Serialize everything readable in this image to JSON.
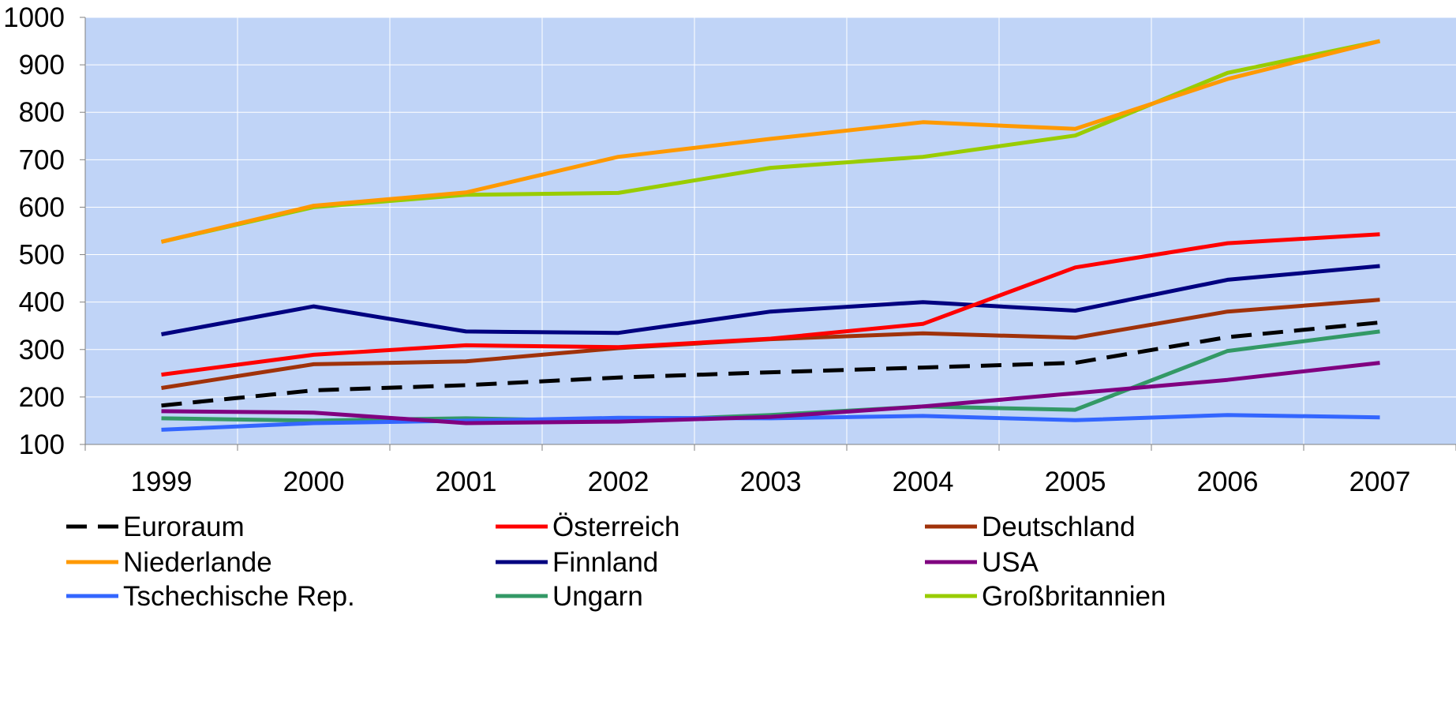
{
  "chart_data": {
    "type": "line",
    "title": "",
    "xlabel": "",
    "ylabel": "",
    "x": [
      "1999",
      "2000",
      "2001",
      "2002",
      "2003",
      "2004",
      "2005",
      "2006",
      "2007"
    ],
    "ylim": [
      100,
      1000
    ],
    "yticks": [
      "100",
      "200",
      "300",
      "400",
      "500",
      "600",
      "700",
      "800",
      "900",
      "1000"
    ],
    "grid": true,
    "legend_position": "bottom",
    "plot_background": "#C0D4F7",
    "series": [
      {
        "name": "Euroraum",
        "color": "#000000",
        "dashed": true,
        "values": [
          182,
          214,
          225,
          241,
          252,
          262,
          272,
          326,
          357
        ]
      },
      {
        "name": "Österreich",
        "color": "#FF0000",
        "dashed": false,
        "values": [
          247,
          289,
          309,
          305,
          323,
          354,
          473,
          524,
          543
        ]
      },
      {
        "name": "Deutschland",
        "color": "#A0320A",
        "dashed": false,
        "values": [
          219,
          269,
          275,
          303,
          322,
          334,
          325,
          380,
          405
        ]
      },
      {
        "name": "Niederlande",
        "color": "#FF9900",
        "dashed": false,
        "values": [
          527,
          603,
          631,
          706,
          744,
          779,
          765,
          870,
          950
        ]
      },
      {
        "name": "Finnland",
        "color": "#000080",
        "dashed": false,
        "values": [
          332,
          391,
          338,
          335,
          380,
          400,
          382,
          447,
          476
        ]
      },
      {
        "name": "USA",
        "color": "#800080",
        "dashed": false,
        "values": [
          170,
          167,
          145,
          148,
          158,
          180,
          208,
          236,
          272
        ]
      },
      {
        "name": "Tschechische Rep.",
        "color": "#3366FF",
        "dashed": false,
        "values": [
          131,
          145,
          150,
          156,
          155,
          160,
          151,
          162,
          157
        ]
      },
      {
        "name": "Ungarn",
        "color": "#339966",
        "dashed": false,
        "values": [
          155,
          150,
          155,
          149,
          162,
          180,
          173,
          297,
          338
        ]
      },
      {
        "name": "Großbritannien",
        "color": "#99CC00",
        "dashed": false,
        "values": [
          527,
          600,
          626,
          630,
          683,
          706,
          751,
          883,
          950
        ]
      }
    ]
  }
}
